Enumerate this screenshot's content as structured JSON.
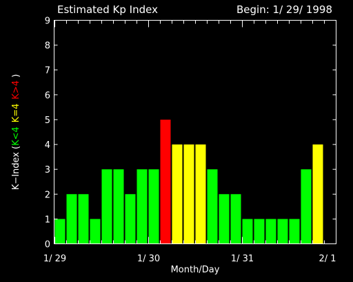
{
  "chart_data": {
    "type": "bar",
    "title": "Estimated Kp Index",
    "subtitle": "Begin: 1/ 29/ 1998",
    "xlabel": "Month/Day",
    "ylabel": {
      "prefix": "K−Index  (",
      "low": "K<4",
      "mid": "K=4",
      "high": "K>4",
      "suffix": ")"
    },
    "ylim": [
      0,
      9
    ],
    "yticks": [
      0,
      1,
      2,
      3,
      4,
      5,
      6,
      7,
      8,
      9
    ],
    "x_tick_labels": [
      "1/ 29",
      "1/ 30",
      "1/ 31",
      "2/ 1"
    ],
    "bars_per_day": 8,
    "days": 3,
    "values": [
      1,
      2,
      2,
      1,
      3,
      3,
      2,
      3,
      3,
      5,
      4,
      4,
      4,
      3,
      2,
      2,
      1,
      1,
      1,
      1,
      1,
      3,
      4
    ],
    "colors": {
      "low": "#00ff00",
      "mid": "#ffff00",
      "high": "#ff0000",
      "axis": "#ffffff",
      "background": "#000000"
    }
  }
}
